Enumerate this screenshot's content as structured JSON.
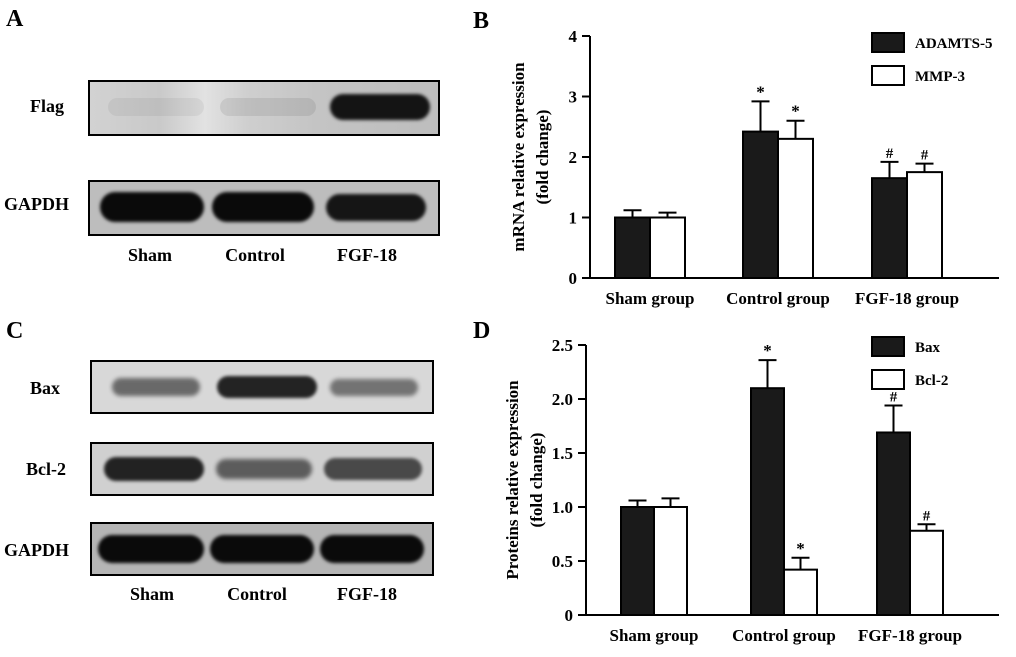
{
  "panels": [
    {
      "letter": "A",
      "blot_rows": [
        "Flag",
        "GAPDH"
      ],
      "lanes": [
        "Sham",
        "Control",
        "FGF-18"
      ],
      "band_intensity": {
        "Flag": [
          0.05,
          0.08,
          1.0
        ],
        "GAPDH": [
          1.0,
          1.0,
          0.95
        ]
      }
    },
    {
      "letter": "C",
      "blot_rows": [
        "Bax",
        "Bcl-2",
        "GAPDH"
      ],
      "lanes": [
        "Sham",
        "Control",
        "FGF-18"
      ],
      "band_intensity": {
        "Bax": [
          0.55,
          0.9,
          0.5
        ],
        "Bcl-2": [
          0.9,
          0.6,
          0.7
        ],
        "GAPDH": [
          1.0,
          1.0,
          1.0
        ]
      }
    }
  ],
  "chart_data": [
    {
      "panel": "B",
      "type": "bar",
      "categories": [
        "Sham group",
        "Control group",
        "FGF-18 group"
      ],
      "series": [
        {
          "name": "ADAMTS-5",
          "values": [
            1.0,
            2.42,
            1.65
          ],
          "errors": [
            0.12,
            0.5,
            0.27
          ],
          "fill": "#1a1a1a",
          "marks": [
            "",
            "*",
            "#"
          ]
        },
        {
          "name": "MMP-3",
          "values": [
            1.0,
            2.3,
            1.75
          ],
          "errors": [
            0.08,
            0.3,
            0.14
          ],
          "fill": "#ffffff",
          "marks": [
            "",
            "*",
            "#"
          ]
        }
      ],
      "ylabel_lines": [
        "mRNA relative expression",
        "(fold change)"
      ],
      "ylim": [
        0,
        4
      ],
      "yticks": [
        "0",
        "1",
        "2",
        "3",
        "4"
      ],
      "ytick_values": [
        0,
        1,
        2,
        3,
        4
      ],
      "legend_position": "top-right",
      "grid": false
    },
    {
      "panel": "D",
      "type": "bar",
      "categories": [
        "Sham group",
        "Control group",
        "FGF-18 group"
      ],
      "series": [
        {
          "name": "Bax",
          "values": [
            1.0,
            2.1,
            1.69
          ],
          "errors": [
            0.06,
            0.26,
            0.25
          ],
          "fill": "#1a1a1a",
          "marks": [
            "",
            "*",
            "#"
          ]
        },
        {
          "name": "Bcl-2",
          "values": [
            1.0,
            0.42,
            0.78
          ],
          "errors": [
            0.08,
            0.11,
            0.06
          ],
          "fill": "#ffffff",
          "marks": [
            "",
            "*",
            "#"
          ]
        }
      ],
      "ylabel_lines": [
        "Proteins relative expression",
        "(fold change)"
      ],
      "ylim": [
        0,
        2.5
      ],
      "yticks": [
        "0",
        "0.5",
        "1.0",
        "1.5",
        "2.0",
        "2.5"
      ],
      "ytick_values": [
        0,
        0.5,
        1.0,
        1.5,
        2.0,
        2.5
      ],
      "legend_position": "top-right",
      "grid": false
    }
  ]
}
